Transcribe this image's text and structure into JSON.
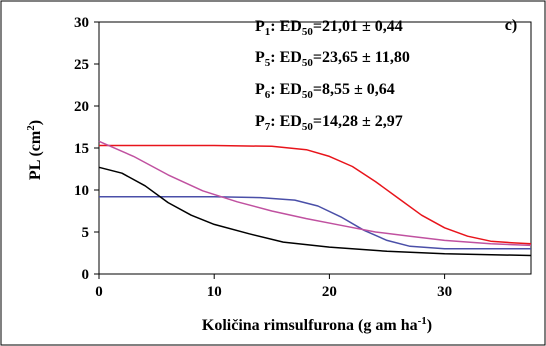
{
  "chart_data": {
    "type": "line",
    "panel_label": "c)",
    "ylabel": "PL (cm²)",
    "ylabel_parts": {
      "main": "PL (cm",
      "sup": "2",
      "end": ")"
    },
    "xlabel": "Količina rimsulfurona (g am ha⁻¹)",
    "xlabel_parts": {
      "main": "Količina rimsulfurona (g am ha",
      "sup": "-1",
      "end": ")"
    },
    "xlim": [
      0,
      37.5
    ],
    "ylim": [
      0,
      30
    ],
    "x_ticks": [
      "0",
      "10",
      "20",
      "30"
    ],
    "y_ticks": [
      "0",
      "5",
      "10",
      "15",
      "20",
      "25",
      "30"
    ],
    "grid": false,
    "annotations": [
      {
        "p": "P",
        "psub": "1",
        "mid": ": ED",
        "edsub": "50",
        "val": "=21,01 ± 0,44"
      },
      {
        "p": "P",
        "psub": "5",
        "mid": ": ED",
        "edsub": "50",
        "val": "=23,65 ± 11,80"
      },
      {
        "p": "P",
        "psub": "6",
        "mid": ": ED",
        "edsub": "50",
        "val": "=8,55 ± 0,64"
      },
      {
        "p": "P",
        "psub": "7",
        "mid": ": ED",
        "edsub": "50",
        "val": "=14,28 ± 2,97"
      }
    ],
    "series": [
      {
        "color": "#e8141b",
        "x": [
          0,
          5,
          10,
          15,
          18,
          20,
          22,
          24,
          26,
          28,
          30,
          32,
          34,
          36,
          37.5
        ],
        "y": [
          15.3,
          15.3,
          15.3,
          15.2,
          14.8,
          14.0,
          12.8,
          11.0,
          9.0,
          7.0,
          5.5,
          4.5,
          3.9,
          3.7,
          3.6
        ]
      },
      {
        "color": "#4a4fa8",
        "x": [
          0,
          5,
          10,
          14,
          17,
          19,
          21,
          23,
          25,
          27,
          30,
          34,
          37.5
        ],
        "y": [
          9.2,
          9.2,
          9.2,
          9.1,
          8.8,
          8.1,
          6.8,
          5.2,
          4.0,
          3.3,
          3.0,
          3.0,
          3.0
        ]
      },
      {
        "color": "#c051a0",
        "x": [
          0,
          3,
          6,
          9,
          12,
          15,
          18,
          21,
          24,
          27,
          30,
          34,
          37.5
        ],
        "y": [
          15.8,
          14.0,
          11.8,
          9.9,
          8.6,
          7.5,
          6.6,
          5.8,
          5.0,
          4.5,
          4.0,
          3.6,
          3.4
        ]
      },
      {
        "color": "#000000",
        "x": [
          0,
          2,
          4,
          6,
          8,
          10,
          13,
          16,
          20,
          25,
          30,
          37.5
        ],
        "y": [
          12.7,
          12.0,
          10.5,
          8.5,
          7.0,
          5.9,
          4.8,
          3.8,
          3.2,
          2.7,
          2.4,
          2.2
        ]
      }
    ]
  }
}
